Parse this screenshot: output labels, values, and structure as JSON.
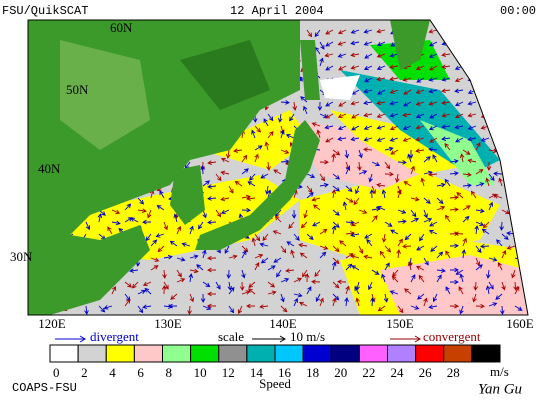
{
  "header": {
    "title": "FSU/QuikSCAT",
    "date": "12 April 2004",
    "time": "00:00"
  },
  "map": {
    "lat_labels": [
      "60N",
      "50N",
      "40N",
      "30N"
    ],
    "lon_labels": [
      "120E",
      "130E",
      "140E",
      "150E",
      "160E"
    ]
  },
  "legend": {
    "divergent": "divergent",
    "scale": "scale",
    "scale_value": "10 m/s",
    "convergent": "convergent"
  },
  "colorbar": {
    "labels": [
      0,
      2,
      4,
      6,
      8,
      10,
      12,
      14,
      16,
      18,
      20,
      22,
      24,
      26,
      28
    ],
    "colors": [
      "#ffffff",
      "#d3d3d3",
      "#ffff00",
      "#ffc8c8",
      "#90ff90",
      "#00e000",
      "#909090",
      "#00b0b0",
      "#00c8ff",
      "#0000d0",
      "#000080",
      "#ff60ff",
      "#b080ff",
      "#ff0000",
      "#c84000",
      "#000000"
    ],
    "unit": "m/s",
    "caption": "Speed"
  },
  "footer": {
    "credit": "COAPS-FSU",
    "signature": "Yan Gu"
  }
}
